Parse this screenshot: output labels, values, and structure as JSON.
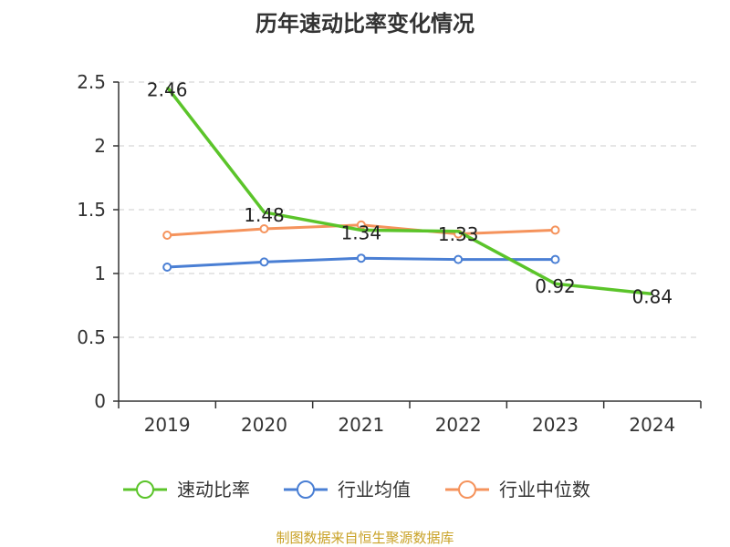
{
  "chart_data": {
    "type": "line",
    "title": "历年速动比率变化情况",
    "xlabel": "",
    "ylabel": "",
    "categories": [
      "2019",
      "2020",
      "2021",
      "2022",
      "2023",
      "2024"
    ],
    "ylim": [
      0,
      2.5
    ],
    "yticks": [
      "0",
      "0.5",
      "1",
      "1.5",
      "2",
      "2.5"
    ],
    "grid": true,
    "legend_position": "bottom",
    "series": [
      {
        "name": "速动比率",
        "color": "#5bc42a",
        "values": [
          2.46,
          1.48,
          1.34,
          1.33,
          0.92,
          0.84
        ],
        "labels": [
          "2.46",
          "1.48",
          "1.34",
          "1.33",
          "0.92",
          "0.84"
        ]
      },
      {
        "name": "行业均值",
        "color": "#4a7fd4",
        "values": [
          1.05,
          1.09,
          1.12,
          1.11,
          1.11,
          null
        ]
      },
      {
        "name": "行业中位数",
        "color": "#f5935c",
        "values": [
          1.3,
          1.35,
          1.38,
          1.31,
          1.34,
          null
        ]
      }
    ],
    "source": "制图数据来自恒生聚源数据库"
  }
}
